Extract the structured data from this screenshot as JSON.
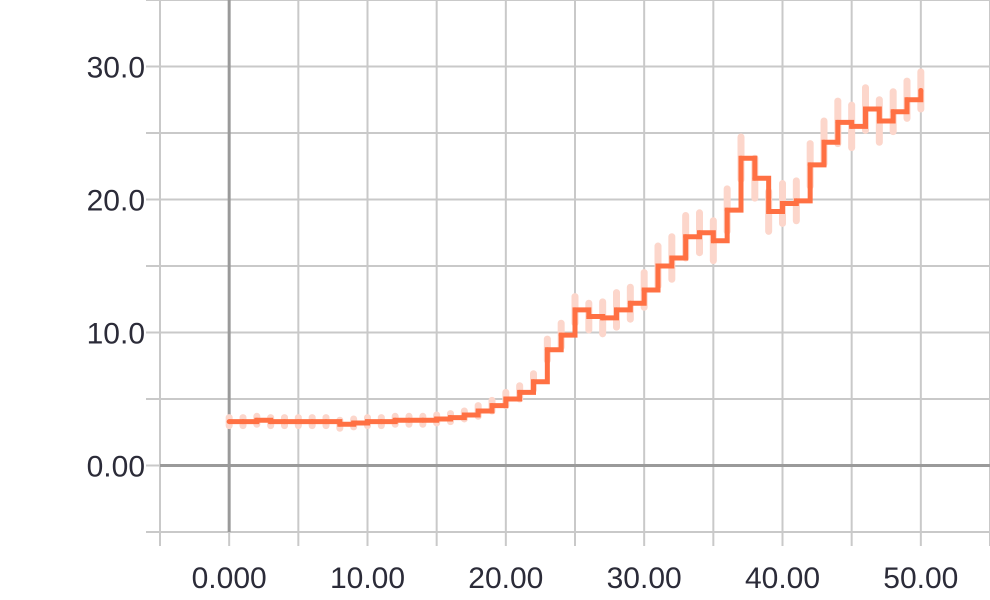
{
  "chart_data": {
    "type": "line",
    "title": "",
    "xlabel": "",
    "ylabel": "",
    "xlim": [
      -5,
      55
    ],
    "ylim": [
      -5,
      35
    ],
    "x_ticks": [
      0,
      10,
      20,
      30,
      40,
      50
    ],
    "x_tick_labels": [
      "0.000",
      "10.00",
      "20.00",
      "30.00",
      "40.00",
      "50.00"
    ],
    "y_ticks": [
      0,
      10,
      20,
      30
    ],
    "y_tick_labels": [
      "0.00",
      "10.0",
      "20.0",
      "30.0"
    ],
    "grid": true,
    "step": true,
    "series": [
      {
        "color": "#ff7043",
        "band_color": "#fcd6cb",
        "x": [
          0,
          1,
          2,
          3,
          4,
          5,
          6,
          7,
          8,
          9,
          10,
          11,
          12,
          13,
          14,
          15,
          16,
          17,
          18,
          19,
          20,
          21,
          22,
          23,
          24,
          25,
          26,
          27,
          28,
          29,
          30,
          31,
          32,
          33,
          34,
          35,
          36,
          37,
          38,
          39,
          40,
          41,
          42,
          43,
          44,
          45,
          46,
          47,
          48,
          49,
          50
        ],
        "values": [
          3.3,
          3.3,
          3.4,
          3.3,
          3.3,
          3.3,
          3.3,
          3.3,
          3.1,
          3.2,
          3.3,
          3.3,
          3.4,
          3.4,
          3.4,
          3.5,
          3.6,
          3.8,
          4.1,
          4.5,
          5.0,
          5.5,
          6.3,
          8.7,
          9.8,
          11.7,
          11.2,
          11.1,
          11.7,
          12.2,
          13.2,
          15.0,
          15.6,
          17.2,
          17.5,
          16.9,
          19.2,
          23.1,
          21.6,
          19.1,
          19.7,
          19.9,
          22.6,
          24.3,
          25.8,
          25.5,
          26.8,
          25.9,
          26.6,
          27.5,
          28.2
        ],
        "band": [
          0.3,
          0.3,
          0.3,
          0.3,
          0.3,
          0.3,
          0.3,
          0.3,
          0.3,
          0.3,
          0.3,
          0.3,
          0.3,
          0.3,
          0.3,
          0.3,
          0.3,
          0.3,
          0.4,
          0.4,
          0.5,
          0.5,
          0.6,
          0.8,
          0.9,
          1.0,
          1.0,
          1.2,
          1.3,
          1.2,
          1.3,
          1.5,
          1.6,
          1.6,
          1.5,
          1.5,
          1.6,
          1.6,
          1.5,
          1.5,
          1.5,
          1.5,
          1.6,
          1.6,
          1.6,
          1.6,
          1.6,
          1.6,
          1.5,
          1.4,
          1.4
        ]
      }
    ]
  }
}
